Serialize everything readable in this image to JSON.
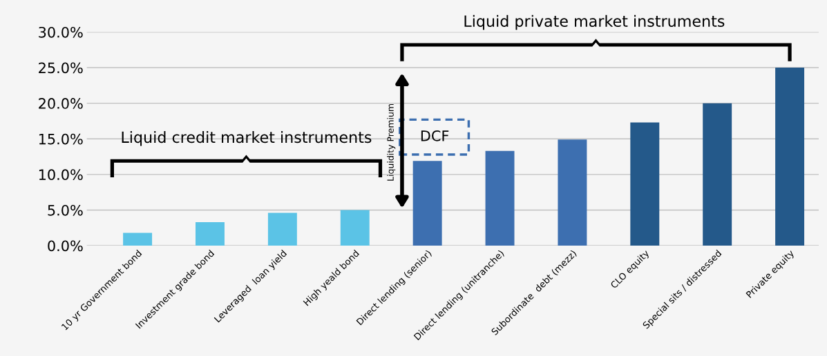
{
  "chart_data": {
    "type": "bar",
    "categories": [
      "10 yr Government bond",
      "Investment grade bond",
      "Leveraged  loan yield",
      "High yeald bond",
      "Direct lending (senior)",
      "Direct lending (unitranche)",
      "Subordinate  debt (mezz)",
      "CLO equity",
      "Special sits / distressed",
      "Private equity"
    ],
    "values": [
      1.8,
      3.3,
      4.6,
      5.0,
      11.9,
      13.3,
      14.9,
      17.3,
      20.0,
      25.0
    ],
    "colors": [
      "#5bc3e6",
      "#5bc3e6",
      "#5bc3e6",
      "#5bc3e6",
      "#3d6fb0",
      "#3d6fb0",
      "#3d6fb0",
      "#24598a",
      "#24598a",
      "#24598a"
    ],
    "ylim": [
      0,
      30
    ],
    "yticks": [
      {
        "value": 0,
        "label": "0.0%"
      },
      {
        "value": 5,
        "label": "5.0%"
      },
      {
        "value": 10,
        "label": "10.0%"
      },
      {
        "value": 15,
        "label": "15.0%"
      },
      {
        "value": 20,
        "label": "20.0%"
      },
      {
        "value": 25,
        "label": "25.0%"
      },
      {
        "value": 30,
        "label": "30.0%"
      }
    ],
    "grid": "y",
    "annotations": [
      "Liquid credit market instruments",
      "Liquid private market instruments",
      "DCF",
      "Liquidity Premium"
    ]
  }
}
